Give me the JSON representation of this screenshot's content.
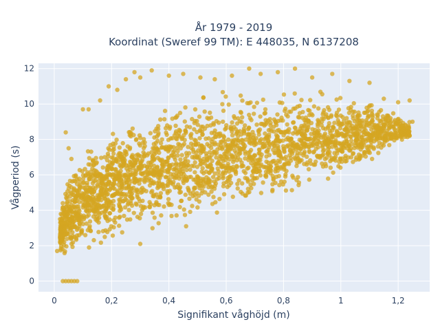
{
  "chart_data": {
    "type": "scatter",
    "title_line1": "År 1979 - 2019",
    "title_line2": "Koordinat (Sweref 99 TM): E 448035, N 6137208",
    "xlabel": "Signifikant våghöjd (m)",
    "ylabel": "Vågperiod (s)",
    "xlim": [
      -0.055,
      1.31
    ],
    "ylim": [
      -0.6,
      12.3
    ],
    "x_ticks": [
      0,
      0.2,
      0.4,
      0.6,
      0.8,
      1.0,
      1.2
    ],
    "x_tick_labels": [
      "0",
      "0,2",
      "0,4",
      "0,6",
      "0,8",
      "1",
      "1,2"
    ],
    "y_ticks": [
      0,
      2,
      4,
      6,
      8,
      10,
      12
    ],
    "y_tick_labels": [
      "0",
      "2",
      "4",
      "6",
      "8",
      "10",
      "12"
    ],
    "grid": true,
    "legend": "none",
    "colors": {
      "marker": "#d4a521",
      "plot_bg": "#e5ecf6",
      "grid": "#ffffff",
      "text": "#2a3f5f"
    },
    "series": [
      {
        "band": [
          [
            0.02,
            1.4,
            3.8
          ],
          [
            0.05,
            1.2,
            6.5
          ],
          [
            0.1,
            1.4,
            7.4
          ],
          [
            0.15,
            1.8,
            8.0
          ],
          [
            0.2,
            2.1,
            8.8
          ],
          [
            0.25,
            2.4,
            9.1
          ],
          [
            0.3,
            2.6,
            9.6
          ],
          [
            0.35,
            2.8,
            9.8
          ],
          [
            0.4,
            3.0,
            10.2
          ],
          [
            0.5,
            3.3,
            10.6
          ],
          [
            0.6,
            3.7,
            10.8
          ],
          [
            0.7,
            4.1,
            10.8
          ],
          [
            0.8,
            4.6,
            10.9
          ],
          [
            0.9,
            5.1,
            10.9
          ],
          [
            1.0,
            5.7,
            10.4
          ],
          [
            1.1,
            6.6,
            10.2
          ],
          [
            1.2,
            7.5,
            9.8
          ],
          [
            1.24,
            8.0,
            9.0
          ]
        ],
        "outliers": [
          [
            0.03,
            0.0
          ],
          [
            0.04,
            0.0
          ],
          [
            0.05,
            0.0
          ],
          [
            0.06,
            0.0
          ],
          [
            0.07,
            0.0
          ],
          [
            0.08,
            0.0
          ],
          [
            0.01,
            1.7
          ],
          [
            0.02,
            3.5
          ],
          [
            0.04,
            8.4
          ],
          [
            0.05,
            7.5
          ],
          [
            0.06,
            6.9
          ],
          [
            0.1,
            9.7
          ],
          [
            0.12,
            9.7
          ],
          [
            0.16,
            10.2
          ],
          [
            0.19,
            11.0
          ],
          [
            0.22,
            10.8
          ],
          [
            0.25,
            11.4
          ],
          [
            0.28,
            11.8
          ],
          [
            0.3,
            11.5
          ],
          [
            0.34,
            11.9
          ],
          [
            0.4,
            11.6
          ],
          [
            0.45,
            11.7
          ],
          [
            0.51,
            11.5
          ],
          [
            0.56,
            11.4
          ],
          [
            0.62,
            11.6
          ],
          [
            0.68,
            12.0
          ],
          [
            0.72,
            11.7
          ],
          [
            0.78,
            11.8
          ],
          [
            0.84,
            12.0
          ],
          [
            0.9,
            11.5
          ],
          [
            0.97,
            11.7
          ],
          [
            1.03,
            11.3
          ],
          [
            1.1,
            11.2
          ],
          [
            1.15,
            10.3
          ],
          [
            1.2,
            10.1
          ],
          [
            1.24,
            10.2
          ],
          [
            1.25,
            9.0
          ],
          [
            0.46,
            3.1
          ],
          [
            0.3,
            2.1
          ]
        ],
        "n_points": 2600
      }
    ]
  }
}
